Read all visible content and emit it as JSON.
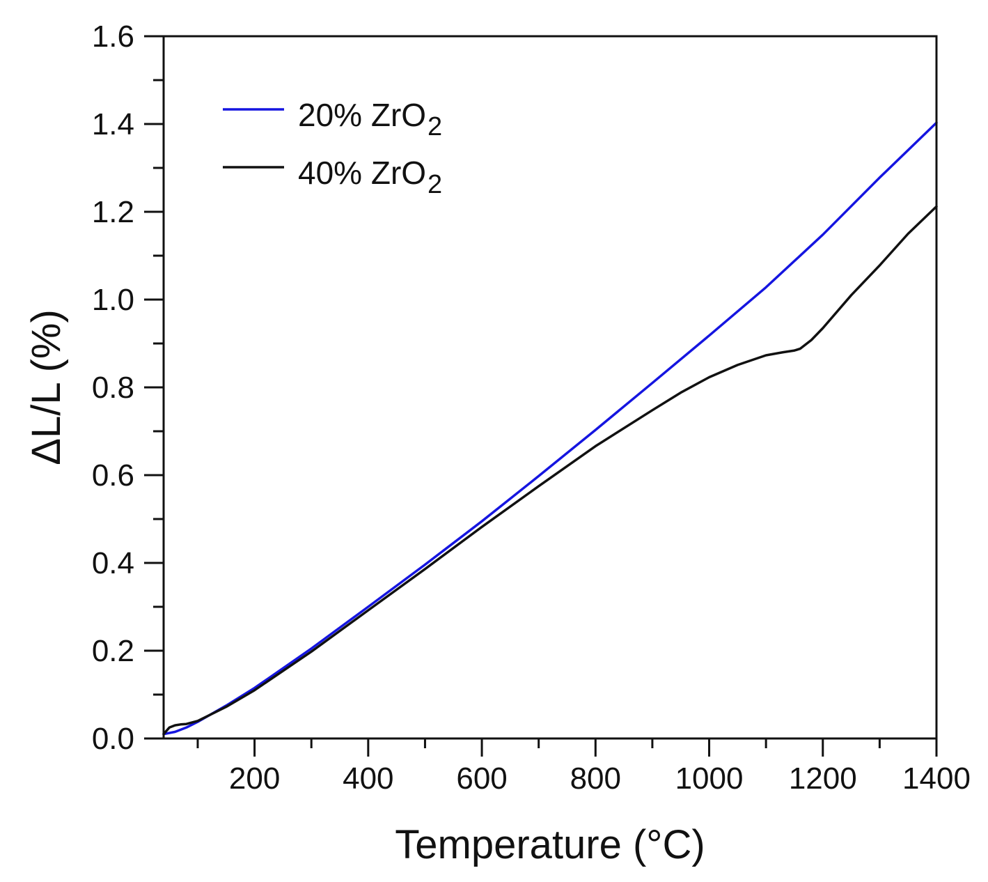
{
  "chart_data": {
    "type": "line",
    "title": "",
    "xlabel": "Temperature (°C)",
    "ylabel": "ΔL/L (%)",
    "xlim": [
      40,
      1400
    ],
    "ylim": [
      0.0,
      1.6
    ],
    "x_ticks": [
      200,
      400,
      600,
      800,
      1000,
      1200,
      1400
    ],
    "x_tick_labels": [
      "200",
      "400",
      "600",
      "800",
      "1000",
      "1200",
      "1400"
    ],
    "x_minor_ticks": [
      100,
      300,
      500,
      700,
      900,
      1100,
      1300
    ],
    "y_ticks": [
      0.0,
      0.2,
      0.4,
      0.6,
      0.8,
      1.0,
      1.2,
      1.4,
      1.6
    ],
    "y_tick_labels": [
      "0.0",
      "0.2",
      "0.4",
      "0.6",
      "0.8",
      "1.0",
      "1.2",
      "1.4",
      "1.6"
    ],
    "y_minor_ticks": [
      0.1,
      0.3,
      0.5,
      0.7,
      0.9,
      1.1,
      1.3,
      1.5
    ],
    "grid": false,
    "legend_position": "top-left",
    "series": [
      {
        "name": "20% ZrO2",
        "label_main": "20% ZrO",
        "label_sub": "2",
        "color": "#1515e0",
        "x": [
          40,
          60,
          80,
          100,
          150,
          200,
          300,
          400,
          500,
          600,
          700,
          800,
          900,
          1000,
          1100,
          1200,
          1300,
          1400
        ],
        "y": [
          0.01,
          0.015,
          0.025,
          0.038,
          0.075,
          0.115,
          0.205,
          0.3,
          0.396,
          0.495,
          0.598,
          0.703,
          0.81,
          0.918,
          1.028,
          1.148,
          1.278,
          1.403
        ]
      },
      {
        "name": "40% ZrO2",
        "label_main": "40% ZrO",
        "label_sub": "2",
        "color": "#111111",
        "x": [
          40,
          50,
          60,
          70,
          80,
          100,
          150,
          200,
          300,
          400,
          500,
          600,
          700,
          800,
          900,
          950,
          1000,
          1050,
          1100,
          1130,
          1150,
          1160,
          1180,
          1200,
          1250,
          1300,
          1350,
          1400
        ],
        "y": [
          0.01,
          0.025,
          0.03,
          0.032,
          0.033,
          0.04,
          0.072,
          0.11,
          0.198,
          0.292,
          0.386,
          0.482,
          0.575,
          0.666,
          0.748,
          0.788,
          0.823,
          0.851,
          0.873,
          0.88,
          0.884,
          0.888,
          0.908,
          0.935,
          1.01,
          1.078,
          1.15,
          1.212
        ]
      }
    ]
  }
}
